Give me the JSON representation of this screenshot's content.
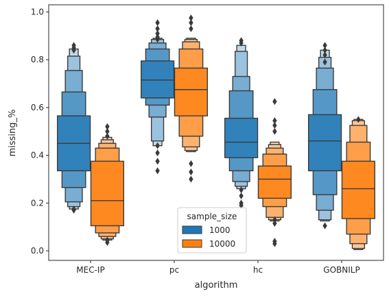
{
  "chart_data": {
    "type": "boxenplot",
    "xlabel": "algorithm",
    "ylabel": "missing_%",
    "ylim": [
      -0.04,
      1.03
    ],
    "yticks": [
      0.0,
      0.2,
      0.4,
      0.6,
      0.8,
      1.0
    ],
    "ytick_labels": [
      "0.0",
      "0.2",
      "0.4",
      "0.6",
      "0.8",
      "1.0"
    ],
    "categories": [
      "MEC-IP",
      "pc",
      "hc",
      "GOBNILP"
    ],
    "legend": {
      "title": "sample_size",
      "placement": "lower-center",
      "entries": [
        "1000",
        "10000"
      ]
    },
    "series": [
      {
        "name": "1000",
        "color": "#1f77b4",
        "groups": [
          {
            "category": "MEC-IP",
            "median": 0.45,
            "boxes": [
              [
                0.335,
                0.565
              ],
              [
                0.265,
                0.665
              ],
              [
                0.205,
                0.755
              ],
              [
                0.185,
                0.815
              ],
              [
                0.175,
                0.845
              ]
            ],
            "outliers": [
              0.175,
              0.17,
              0.84,
              0.85,
              0.86
            ]
          },
          {
            "category": "pc",
            "median": 0.715,
            "boxes": [
              [
                0.64,
                0.795
              ],
              [
                0.61,
                0.845
              ],
              [
                0.56,
                0.87
              ],
              [
                0.46,
                0.885
              ],
              [
                0.44,
                0.89
              ]
            ],
            "outliers": [
              0.335,
              0.375,
              0.41,
              0.44,
              0.885,
              0.895,
              0.91,
              0.93,
              0.955
            ]
          },
          {
            "category": "hc",
            "median": 0.455,
            "boxes": [
              [
                0.39,
                0.555
              ],
              [
                0.335,
                0.67
              ],
              [
                0.29,
                0.73
              ],
              [
                0.27,
                0.835
              ],
              [
                0.26,
                0.86
              ]
            ],
            "outliers": [
              0.19,
              0.2,
              0.23,
              0.255,
              0.87,
              0.88
            ]
          },
          {
            "category": "GOBNILP",
            "median": 0.46,
            "boxes": [
              [
                0.335,
                0.57
              ],
              [
                0.235,
                0.675
              ],
              [
                0.17,
                0.765
              ],
              [
                0.13,
                0.81
              ],
              [
                0.125,
                0.84
              ]
            ],
            "outliers": [
              0.105,
              0.84,
              0.82,
              0.86,
              0.79
            ]
          }
        ]
      },
      {
        "name": "10000",
        "color": "#ff7f0e",
        "groups": [
          {
            "category": "MEC-IP",
            "median": 0.21,
            "boxes": [
              [
                0.105,
                0.375
              ],
              [
                0.075,
                0.43
              ],
              [
                0.06,
                0.45
              ],
              [
                0.05,
                0.465
              ],
              [
                0.045,
                0.475
              ]
            ],
            "outliers": [
              0.035,
              0.045,
              0.48,
              0.5,
              0.52
            ]
          },
          {
            "category": "pc",
            "median": 0.675,
            "boxes": [
              [
                0.565,
                0.765
              ],
              [
                0.48,
                0.845
              ],
              [
                0.435,
                0.875
              ],
              [
                0.42,
                0.885
              ],
              [
                0.415,
                0.89
              ]
            ],
            "outliers": [
              0.3,
              0.33,
              0.365,
              0.93,
              0.955,
              0.975
            ]
          },
          {
            "category": "hc",
            "median": 0.3,
            "boxes": [
              [
                0.22,
                0.355
              ],
              [
                0.185,
                0.405
              ],
              [
                0.14,
                0.43
              ],
              [
                0.13,
                0.445
              ],
              [
                0.125,
                0.455
              ]
            ],
            "outliers": [
              0.03,
              0.04,
              0.115,
              0.13,
              0.5,
              0.525,
              0.545,
              0.625
            ]
          },
          {
            "category": "GOBNILP",
            "median": 0.26,
            "boxes": [
              [
                0.135,
                0.375
              ],
              [
                0.07,
                0.455
              ],
              [
                0.03,
                0.525
              ],
              [
                0.01,
                0.545
              ],
              [
                0.005,
                0.55
              ]
            ],
            "outliers": [
              0.55
            ]
          }
        ]
      }
    ]
  }
}
